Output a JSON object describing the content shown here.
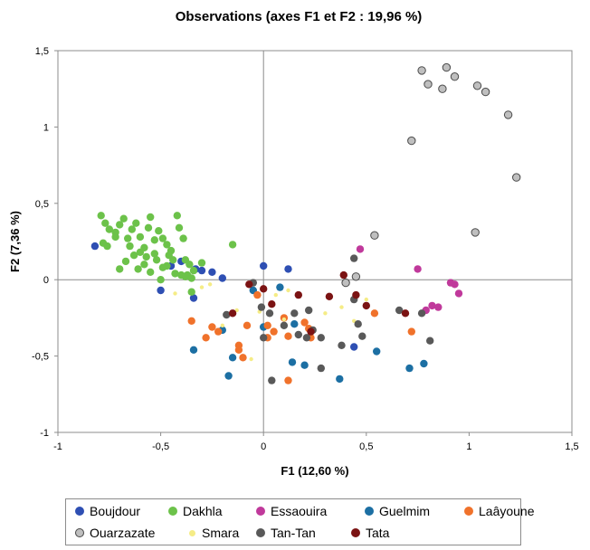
{
  "chart_data": {
    "type": "scatter",
    "title": "Observations (axes F1 et F2 : 19,96 %)",
    "xlabel": "F1 (12,60 %)",
    "ylabel": "F2 (7,36 %)",
    "xlim": [
      -1,
      1.5
    ],
    "ylim": [
      -1,
      1.5
    ],
    "x_ticks": [
      -1,
      -0.5,
      0,
      0.5,
      1,
      1.5
    ],
    "y_ticks": [
      -1,
      -0.5,
      0,
      0.5,
      1,
      1.5
    ],
    "x_tick_labels": [
      "-1",
      "-0,5",
      "0",
      "0,5",
      "1",
      "1,5"
    ],
    "y_tick_labels": [
      "-1",
      "-0,5",
      "0",
      "0,5",
      "1",
      "1,5"
    ],
    "grid": false,
    "reference_lines": [
      "x=0",
      "y=0"
    ],
    "legend_position": "bottom",
    "series": [
      {
        "name": "Boujdour",
        "color": "#2e4fb3",
        "points": [
          [
            -0.82,
            0.22
          ],
          [
            -0.5,
            -0.07
          ],
          [
            -0.45,
            0.09
          ],
          [
            -0.4,
            0.12
          ],
          [
            -0.33,
            0.07
          ],
          [
            -0.3,
            0.06
          ],
          [
            -0.25,
            0.05
          ],
          [
            -0.2,
            0.01
          ],
          [
            -0.34,
            -0.12
          ],
          [
            0.12,
            0.07
          ],
          [
            0.0,
            0.09
          ],
          [
            0.44,
            -0.44
          ]
        ]
      },
      {
        "name": "Dakhla",
        "color": "#6cc24a",
        "points": [
          [
            -0.79,
            0.42
          ],
          [
            -0.77,
            0.37
          ],
          [
            -0.75,
            0.33
          ],
          [
            -0.72,
            0.31
          ],
          [
            -0.7,
            0.36
          ],
          [
            -0.68,
            0.4
          ],
          [
            -0.66,
            0.27
          ],
          [
            -0.64,
            0.33
          ],
          [
            -0.62,
            0.37
          ],
          [
            -0.6,
            0.28
          ],
          [
            -0.58,
            0.21
          ],
          [
            -0.56,
            0.34
          ],
          [
            -0.55,
            0.41
          ],
          [
            -0.53,
            0.26
          ],
          [
            -0.51,
            0.32
          ],
          [
            -0.49,
            0.27
          ],
          [
            -0.47,
            0.23
          ],
          [
            -0.45,
            0.19
          ],
          [
            -0.42,
            0.42
          ],
          [
            -0.41,
            0.34
          ],
          [
            -0.39,
            0.27
          ],
          [
            -0.38,
            0.13
          ],
          [
            -0.36,
            0.1
          ],
          [
            -0.34,
            0.06
          ],
          [
            -0.3,
            0.11
          ],
          [
            -0.78,
            0.24
          ],
          [
            -0.76,
            0.22
          ],
          [
            -0.7,
            0.07
          ],
          [
            -0.67,
            0.12
          ],
          [
            -0.63,
            0.16
          ],
          [
            -0.61,
            0.07
          ],
          [
            -0.58,
            0.1
          ],
          [
            -0.55,
            0.05
          ],
          [
            -0.52,
            0.13
          ],
          [
            -0.49,
            0.08
          ],
          [
            -0.46,
            0.16
          ],
          [
            -0.43,
            0.04
          ],
          [
            -0.4,
            0.03
          ],
          [
            -0.37,
            0.03
          ],
          [
            -0.35,
            0.01
          ],
          [
            -0.6,
            0.18
          ],
          [
            -0.57,
            0.15
          ],
          [
            -0.53,
            0.17
          ],
          [
            -0.5,
            0.0
          ],
          [
            -0.47,
            0.09
          ],
          [
            -0.44,
            0.13
          ],
          [
            -0.38,
            0.02
          ],
          [
            -0.35,
            -0.08
          ],
          [
            -0.15,
            0.23
          ],
          [
            -0.65,
            0.22
          ],
          [
            -0.72,
            0.28
          ]
        ]
      },
      {
        "name": "Essaouira",
        "color": "#c0399b",
        "points": [
          [
            0.47,
            0.2
          ],
          [
            0.75,
            0.07
          ],
          [
            0.91,
            -0.02
          ],
          [
            0.93,
            -0.03
          ],
          [
            0.95,
            -0.09
          ],
          [
            0.82,
            -0.17
          ],
          [
            0.85,
            -0.18
          ],
          [
            0.79,
            -0.2
          ]
        ]
      },
      {
        "name": "Guelmim",
        "color": "#1c6fa3",
        "points": [
          [
            -0.2,
            -0.33
          ],
          [
            -0.15,
            -0.51
          ],
          [
            -0.17,
            -0.63
          ],
          [
            -0.05,
            -0.07
          ],
          [
            0.08,
            -0.05
          ],
          [
            0.15,
            -0.29
          ],
          [
            0.2,
            -0.56
          ],
          [
            0.14,
            -0.54
          ],
          [
            0.37,
            -0.65
          ],
          [
            0.55,
            -0.47
          ],
          [
            0.71,
            -0.58
          ],
          [
            0.78,
            -0.55
          ],
          [
            -0.34,
            -0.46
          ],
          [
            0.0,
            -0.31
          ]
        ]
      },
      {
        "name": "Laâyoune",
        "color": "#f0722b",
        "points": [
          [
            -0.35,
            -0.27
          ],
          [
            -0.28,
            -0.38
          ],
          [
            -0.22,
            -0.34
          ],
          [
            -0.25,
            -0.31
          ],
          [
            -0.12,
            -0.43
          ],
          [
            -0.1,
            -0.51
          ],
          [
            -0.08,
            -0.3
          ],
          [
            -0.03,
            -0.1
          ],
          [
            0.02,
            -0.3
          ],
          [
            0.05,
            -0.34
          ],
          [
            0.1,
            -0.25
          ],
          [
            0.12,
            -0.37
          ],
          [
            0.12,
            -0.66
          ],
          [
            0.2,
            -0.28
          ],
          [
            0.22,
            -0.32
          ],
          [
            0.23,
            -0.38
          ],
          [
            0.54,
            -0.22
          ],
          [
            0.72,
            -0.34
          ],
          [
            0.02,
            -0.38
          ],
          [
            -0.12,
            -0.46
          ]
        ]
      },
      {
        "name": "Ouarzazate",
        "color": "#bfbfbf",
        "points": [
          [
            0.77,
            1.37
          ],
          [
            0.8,
            1.28
          ],
          [
            0.87,
            1.25
          ],
          [
            0.89,
            1.39
          ],
          [
            0.93,
            1.33
          ],
          [
            1.04,
            1.27
          ],
          [
            1.08,
            1.23
          ],
          [
            1.19,
            1.08
          ],
          [
            0.72,
            0.91
          ],
          [
            1.23,
            0.67
          ],
          [
            1.03,
            0.31
          ],
          [
            0.54,
            0.29
          ],
          [
            0.45,
            0.02
          ],
          [
            0.4,
            -0.02
          ]
        ]
      },
      {
        "name": "Smara",
        "color": "#f5ec86",
        "points": [
          [
            -0.3,
            -0.05
          ],
          [
            -0.26,
            -0.03
          ],
          [
            -0.2,
            -0.3
          ],
          [
            -0.13,
            -0.2
          ],
          [
            -0.06,
            -0.52
          ],
          [
            -0.02,
            -0.21
          ],
          [
            0.06,
            -0.1
          ],
          [
            0.12,
            -0.07
          ],
          [
            0.3,
            -0.22
          ],
          [
            0.38,
            -0.18
          ],
          [
            0.44,
            -0.27
          ],
          [
            0.5,
            -0.13
          ],
          [
            -0.43,
            -0.09
          ],
          [
            0.1,
            -0.26
          ]
        ]
      },
      {
        "name": "Tan-Tan",
        "color": "#595959",
        "points": [
          [
            -0.18,
            -0.23
          ],
          [
            -0.05,
            -0.02
          ],
          [
            0.03,
            -0.22
          ],
          [
            0.1,
            -0.3
          ],
          [
            0.15,
            -0.22
          ],
          [
            0.17,
            -0.36
          ],
          [
            0.21,
            -0.38
          ],
          [
            0.24,
            -0.33
          ],
          [
            0.28,
            -0.38
          ],
          [
            0.38,
            -0.43
          ],
          [
            0.44,
            -0.13
          ],
          [
            0.46,
            -0.29
          ],
          [
            0.48,
            -0.37
          ],
          [
            0.66,
            -0.2
          ],
          [
            0.77,
            -0.22
          ],
          [
            0.81,
            -0.4
          ],
          [
            0.0,
            -0.38
          ],
          [
            -0.01,
            -0.18
          ],
          [
            0.04,
            -0.66
          ],
          [
            0.28,
            -0.58
          ],
          [
            0.44,
            0.14
          ],
          [
            0.22,
            -0.2
          ]
        ]
      },
      {
        "name": "Tata",
        "color": "#7b1313",
        "points": [
          [
            -0.07,
            -0.03
          ],
          [
            -0.15,
            -0.22
          ],
          [
            0.0,
            -0.06
          ],
          [
            0.17,
            -0.1
          ],
          [
            0.32,
            -0.11
          ],
          [
            0.39,
            0.03
          ],
          [
            0.45,
            -0.1
          ],
          [
            0.5,
            -0.17
          ],
          [
            0.69,
            -0.22
          ],
          [
            0.04,
            -0.16
          ],
          [
            0.23,
            -0.34
          ]
        ]
      }
    ]
  }
}
